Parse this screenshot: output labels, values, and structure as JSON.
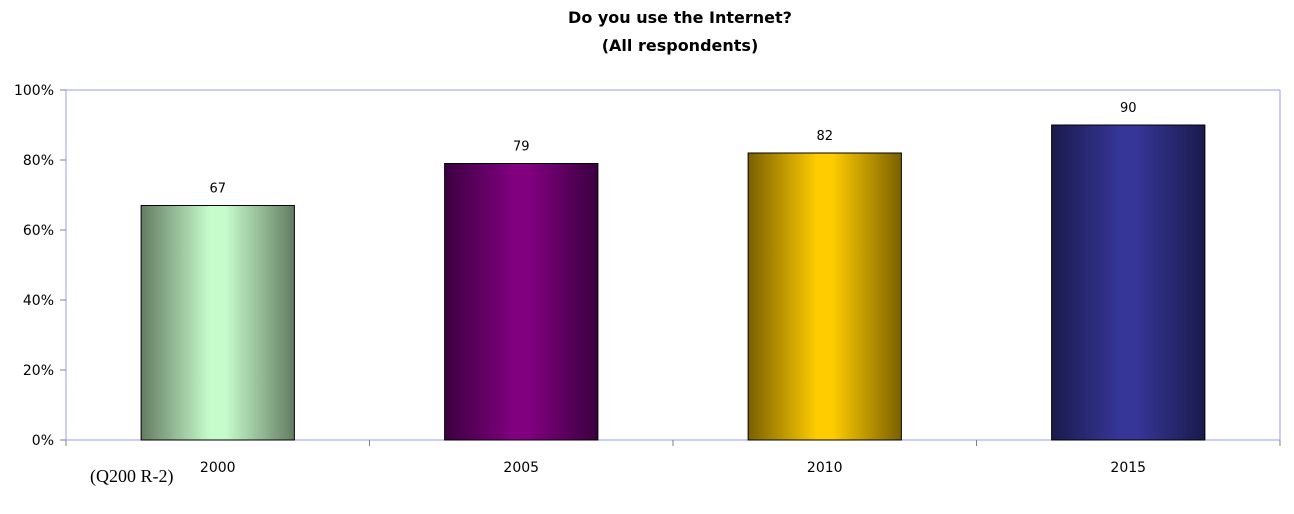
{
  "chart_data": {
    "type": "bar",
    "title": "Do you use the Internet?",
    "subtitle": "(All respondents)",
    "categories": [
      "2000",
      "2005",
      "2010",
      "2015"
    ],
    "values": [
      67,
      79,
      82,
      90
    ],
    "value_labels": [
      "67",
      "79",
      "82",
      "90"
    ],
    "ylim": [
      0,
      100
    ],
    "y_ticks": [
      0,
      20,
      40,
      60,
      80,
      100
    ],
    "y_tick_labels": [
      "0%",
      "20%",
      "40%",
      "60%",
      "80%",
      "100%"
    ],
    "xlabel": "",
    "ylabel": "",
    "grid": false,
    "legend": "none",
    "bar_colors": [
      {
        "edge": "#647c62",
        "center": "#c6fccc"
      },
      {
        "edge": "#3b0040",
        "center": "#800080"
      },
      {
        "edge": "#7a6000",
        "center": "#ffcc00"
      },
      {
        "edge": "#1a1a4d",
        "center": "#363699"
      }
    ],
    "frame_color": "#9999ff"
  },
  "footnote": "(Q200 R-2)"
}
